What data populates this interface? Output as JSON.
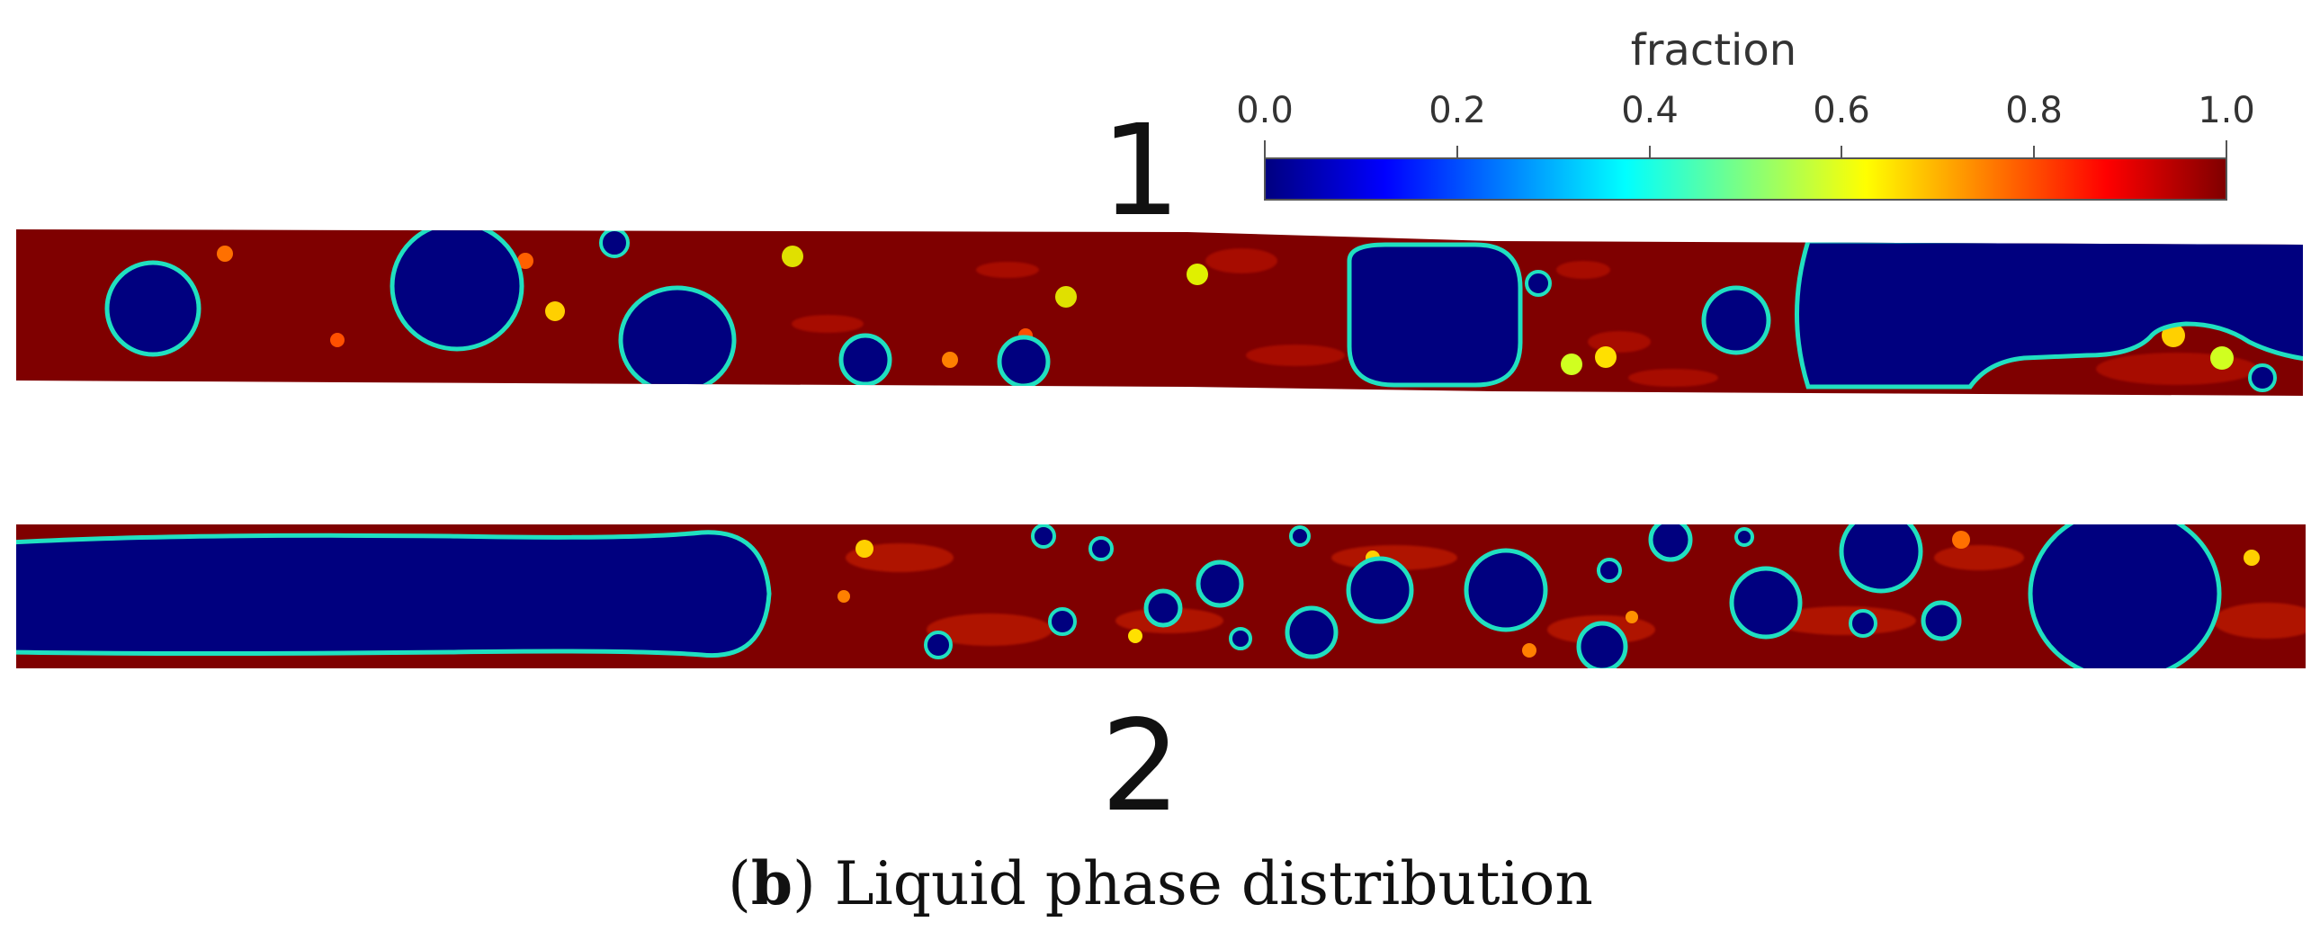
{
  "colorbar": {
    "title": "fraction",
    "ticks": [
      "0.0",
      "0.2",
      "0.4",
      "0.6",
      "0.8",
      "1.0"
    ],
    "range": [
      0.0,
      1.0
    ],
    "colormap": "jet",
    "colors": [
      "#00007f",
      "#0000ff",
      "#00ffff",
      "#ffff00",
      "#ff0000",
      "#7f0000"
    ]
  },
  "panels": [
    {
      "label": "1"
    },
    {
      "label": "2"
    }
  ],
  "caption": {
    "letter": "b",
    "open": "(",
    "close": ")",
    "text": " Liquid phase distribution"
  },
  "colors": {
    "liquid": "#7f0000",
    "gas": "#00007f",
    "interface": "#20e0c0"
  }
}
